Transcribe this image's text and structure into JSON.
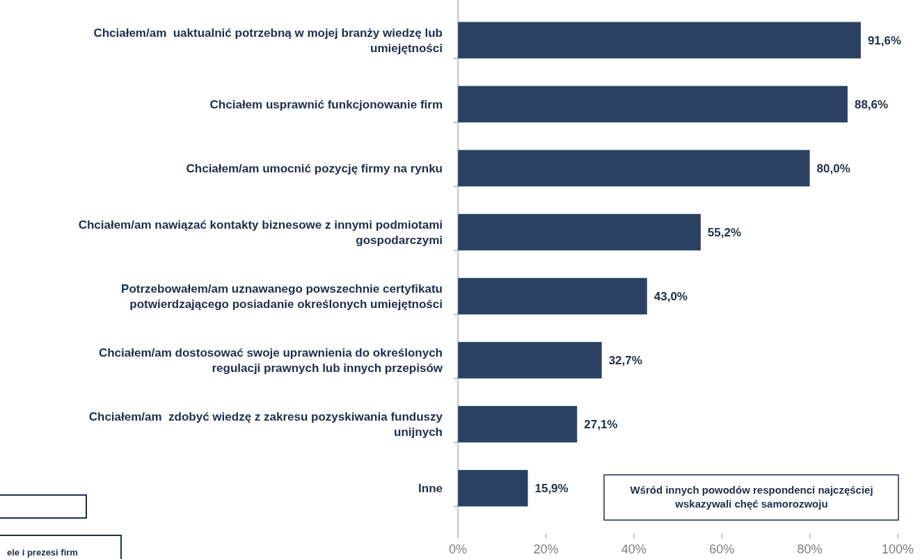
{
  "chart_data": {
    "type": "bar",
    "orientation": "horizontal",
    "categories": [
      "Chciałem/am  uaktualnić potrzebną w mojej branży wiedzę lub umiejętności",
      "Chciałem usprawnić funkcjonowanie firm",
      "Chciałem/am umocnić pozycję firmy na rynku",
      "Chciałem/am nawiązać kontakty biznesowe z innymi podmiotami gospodarczymi",
      "Potrzebowałem/am uznawanego powszechnie certyfikatu potwierdzającego posiadanie określonych umiejętności",
      "Chciałem/am dostosować swoje uprawnienia do określonych regulacji prawnych lub innych przepisów",
      "Chciałem/am  zdobyć wiedzę z zakresu pozyskiwania funduszy unijnych",
      "Inne"
    ],
    "values": [
      91.6,
      88.6,
      80.0,
      55.2,
      43.0,
      32.7,
      27.1,
      15.9
    ],
    "value_labels": [
      "91,6%",
      "88,6%",
      "80,0%",
      "55,2%",
      "43,0%",
      "32,7%",
      "27,1%",
      "15,9%"
    ],
    "color": "#2a4163",
    "xlim": [
      0,
      100
    ],
    "xticks": [
      {
        "value": 0,
        "label": "0%"
      },
      {
        "value": 20,
        "label": "20%"
      },
      {
        "value": 40,
        "label": "40%"
      },
      {
        "value": 60,
        "label": "60%"
      },
      {
        "value": 80,
        "label": "80%"
      },
      {
        "value": 100,
        "label": "100%"
      }
    ],
    "grid": false,
    "legend": false,
    "annotations": [
      "Wśród innych powodów respondenci najczęściej wskazywali chęć samorozwoju",
      "ele i prezesi firm"
    ]
  }
}
